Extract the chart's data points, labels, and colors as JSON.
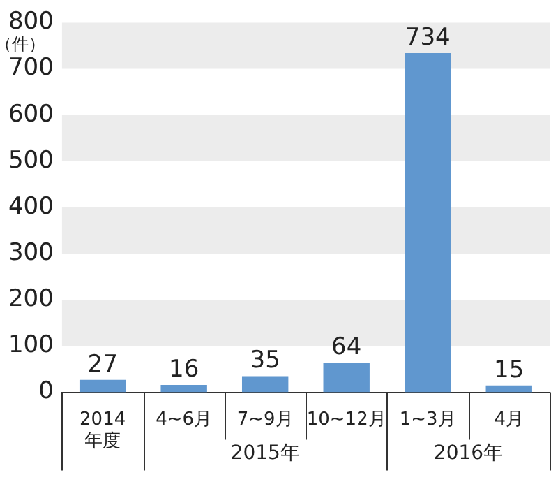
{
  "chart_data": {
    "type": "bar",
    "ylabel": "（件）",
    "categories": [
      "2014\n年度",
      "4~6月",
      "7~9月",
      "10~12月",
      "1~3月",
      "4月"
    ],
    "values": [
      27,
      16,
      35,
      64,
      734,
      15
    ],
    "color": "#6097cf",
    "ylim": [
      0,
      800
    ],
    "yticks": [
      0,
      100,
      200,
      300,
      400,
      500,
      600,
      700,
      800
    ],
    "grid": false,
    "data_labels": true,
    "bands": [
      {
        "axis": "y",
        "from": 100,
        "to": 200,
        "color": "#ececec"
      },
      {
        "axis": "y",
        "from": 300,
        "to": 400,
        "color": "#ececec"
      },
      {
        "axis": "y",
        "from": 500,
        "to": 600,
        "color": "#ececec"
      },
      {
        "axis": "y",
        "from": 700,
        "to": 800,
        "color": "#ececec"
      }
    ],
    "annotations": [
      "2015年",
      "2016年"
    ]
  }
}
